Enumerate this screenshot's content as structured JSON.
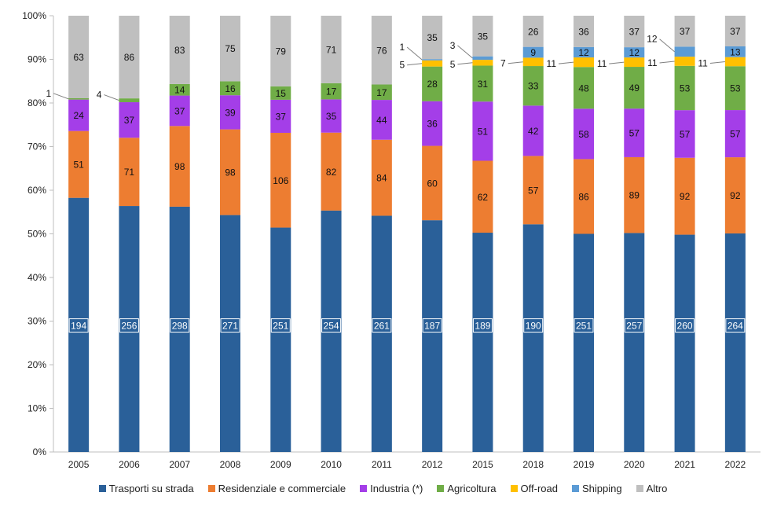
{
  "chart_data": {
    "type": "bar",
    "stacked": "percent",
    "title": "",
    "xlabel": "",
    "ylabel": "",
    "ylim": [
      0,
      100
    ],
    "y_ticks": [
      "0%",
      "10%",
      "20%",
      "30%",
      "40%",
      "50%",
      "60%",
      "70%",
      "80%",
      "90%",
      "100%"
    ],
    "grid": false,
    "legend_position": "bottom",
    "categories": [
      "2005",
      "2006",
      "2007",
      "2008",
      "2009",
      "2010",
      "2011",
      "2012",
      "2015",
      "2018",
      "2019",
      "2020",
      "2021",
      "2022"
    ],
    "series": [
      {
        "name": "Trasporti su strada",
        "color": "#2a6099",
        "values": [
          194,
          256,
          298,
          271,
          251,
          254,
          261,
          187,
          189,
          190,
          251,
          257,
          260,
          264
        ],
        "labels": [
          "194",
          "256",
          "298",
          "271",
          "251",
          "254",
          "261",
          "187",
          "189",
          "190",
          "251",
          "257",
          "260",
          "264"
        ]
      },
      {
        "name": "Residenziale e commerciale",
        "color": "#ed7d31",
        "values": [
          51,
          71,
          98,
          98,
          106,
          82,
          84,
          60,
          62,
          57,
          86,
          89,
          92,
          92
        ],
        "labels": [
          "51",
          "71",
          "98",
          "98",
          "106",
          "82",
          "84",
          "60",
          "62",
          "57",
          "86",
          "89",
          "92",
          "92"
        ]
      },
      {
        "name": "Industria (*)",
        "color": "#a43ee8",
        "values": [
          24,
          37,
          37,
          39,
          37,
          35,
          44,
          36,
          51,
          42,
          58,
          57,
          57,
          57
        ],
        "labels": [
          "24",
          "37",
          "37",
          "39",
          "37",
          "35",
          "44",
          "36",
          "51",
          "42",
          "58",
          "57",
          "57",
          "57"
        ]
      },
      {
        "name": "Agricoltura",
        "color": "#70ad47",
        "values": [
          1,
          4,
          14,
          16,
          15,
          17,
          17,
          28,
          31,
          33,
          48,
          49,
          53,
          53
        ],
        "labels": [
          "1",
          "4",
          "14",
          "16",
          "15",
          "17",
          "17",
          "28",
          "31",
          "33",
          "48",
          "49",
          "53",
          "53"
        ]
      },
      {
        "name": "Off-road",
        "color": "#ffc000",
        "values": [
          0,
          0,
          0,
          0,
          0,
          0,
          0,
          5,
          5,
          7,
          11,
          11,
          11,
          11
        ],
        "labels": [
          "",
          "",
          "",
          "",
          "",
          "",
          "",
          "5",
          "5",
          "7",
          "11",
          "11",
          "11",
          "11"
        ]
      },
      {
        "name": "Shipping",
        "color": "#5b9bd5",
        "values": [
          0,
          0,
          0,
          0,
          0,
          0,
          0,
          1,
          3,
          9,
          12,
          12,
          12,
          13
        ],
        "labels": [
          "",
          "",
          "",
          "",
          "",
          "",
          "",
          "1",
          "3",
          "9",
          "12",
          "12",
          "12",
          "13"
        ]
      },
      {
        "name": "Altro",
        "color": "#bfbfbf",
        "values": [
          63,
          86,
          83,
          75,
          79,
          71,
          76,
          35,
          35,
          26,
          36,
          37,
          37,
          37
        ],
        "labels": [
          "63",
          "86",
          "83",
          "75",
          "79",
          "71",
          "76",
          "35",
          "35",
          "26",
          "36",
          "37",
          "37",
          "37"
        ]
      }
    ]
  }
}
